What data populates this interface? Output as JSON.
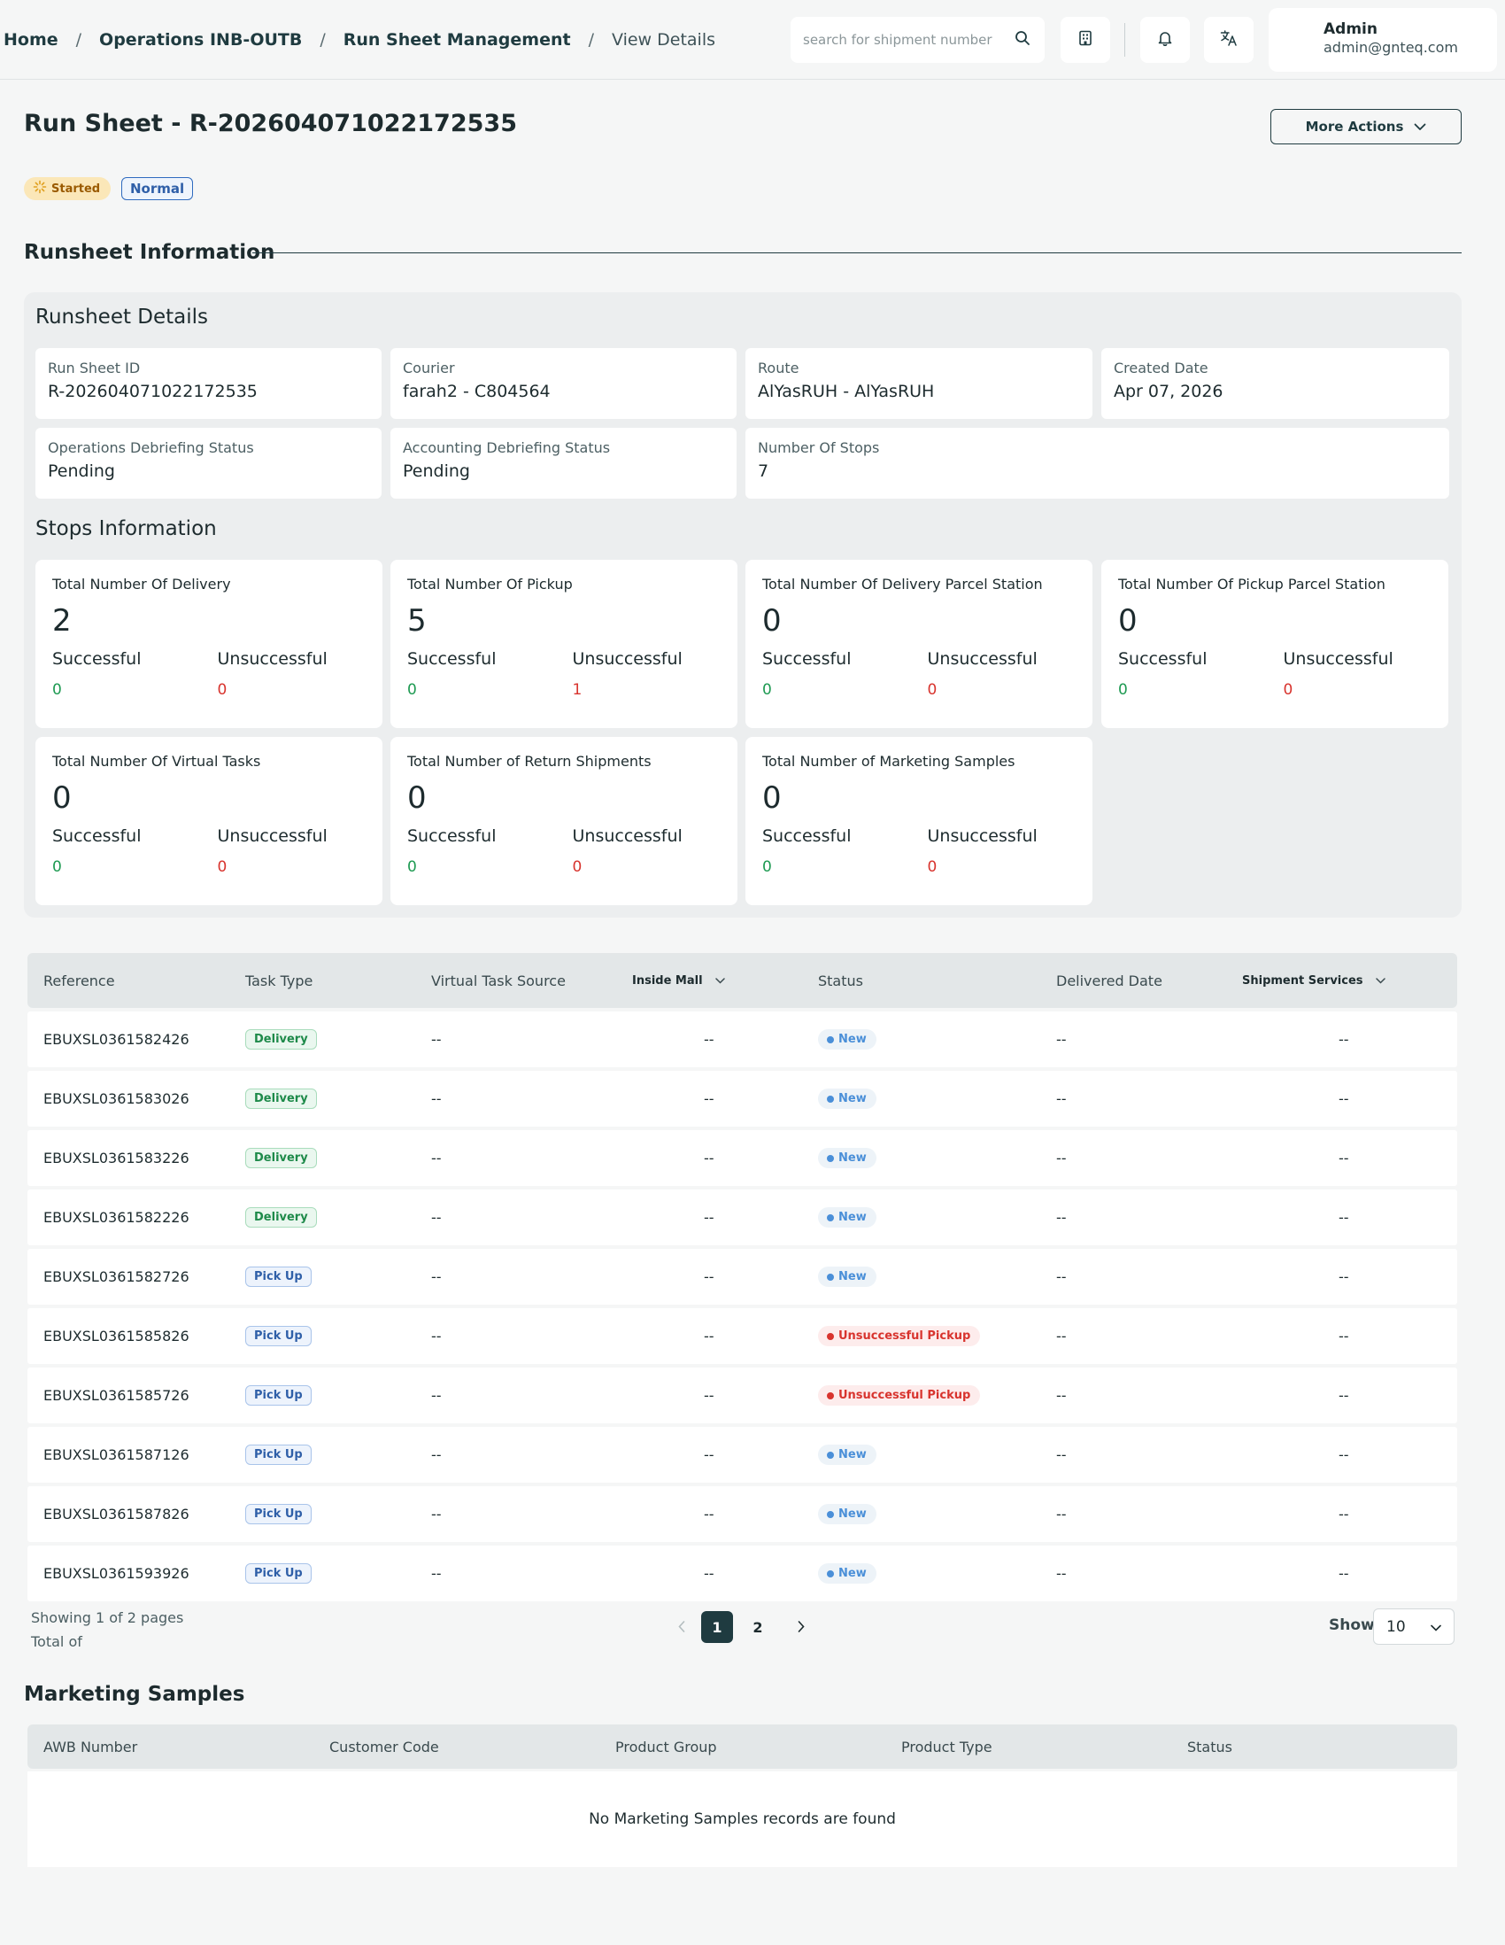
{
  "header": {
    "breadcrumbs": [
      "Home",
      "Operations INB-OUTB",
      "Run Sheet Management",
      "View Details"
    ],
    "separator": "/",
    "search_placeholder": "search for shipment number",
    "user": {
      "name": "Admin",
      "email": "admin@gnteq.com"
    },
    "icons": {
      "search": "search-icon",
      "building": "building-icon",
      "bell": "bell-icon",
      "translate": "translate-icon"
    }
  },
  "page": {
    "title": "Run Sheet - R-202604071022172535",
    "more_actions": "More Actions",
    "status_badge": "Started",
    "priority_badge": "Normal",
    "section_title": "Runsheet Information"
  },
  "details": {
    "heading": "Runsheet Details",
    "fields": [
      {
        "label": "Run Sheet ID",
        "value": "R-202604071022172535"
      },
      {
        "label": "Courier",
        "value": "farah2 - C804564"
      },
      {
        "label": "Route",
        "value": "AlYasRUH - AlYasRUH"
      },
      {
        "label": "Created Date",
        "value": "Apr 07, 2026"
      },
      {
        "label": "Operations Debriefing Status",
        "value": "Pending"
      },
      {
        "label": "Accounting Debriefing Status",
        "value": "Pending"
      },
      {
        "label": "Number Of Stops",
        "value": "7"
      }
    ]
  },
  "stops": {
    "heading": "Stops Information",
    "successful_label": "Successful",
    "unsuccessful_label": "Unsuccessful",
    "cards": [
      {
        "title": "Total Number Of Delivery",
        "total": "2",
        "successful": "0",
        "unsuccessful": "0"
      },
      {
        "title": "Total Number Of Pickup",
        "total": "5",
        "successful": "0",
        "unsuccessful": "1"
      },
      {
        "title": "Total Number Of Delivery Parcel Station",
        "total": "0",
        "successful": "0",
        "unsuccessful": "0"
      },
      {
        "title": "Total Number Of Pickup Parcel Station",
        "total": "0",
        "successful": "0",
        "unsuccessful": "0"
      },
      {
        "title": "Total Number Of Virtual Tasks",
        "total": "0",
        "successful": "0",
        "unsuccessful": "0"
      },
      {
        "title": "Total Number of Return Shipments",
        "total": "0",
        "successful": "0",
        "unsuccessful": "0"
      },
      {
        "title": "Total Number of Marketing Samples",
        "total": "0",
        "successful": "0",
        "unsuccessful": "0"
      }
    ]
  },
  "table": {
    "columns": [
      "Reference",
      "Task Type",
      "Virtual Task Source",
      "Inside Mall",
      "Status",
      "Delivered Date",
      "Shipment Services"
    ],
    "rows": [
      {
        "reference": "EBUXSL0361582426",
        "task_type": "Delivery",
        "virtual_source": "--",
        "inside_mall": "--",
        "status": "New",
        "delivered_date": "--",
        "services": "--"
      },
      {
        "reference": "EBUXSL0361583026",
        "task_type": "Delivery",
        "virtual_source": "--",
        "inside_mall": "--",
        "status": "New",
        "delivered_date": "--",
        "services": "--"
      },
      {
        "reference": "EBUXSL0361583226",
        "task_type": "Delivery",
        "virtual_source": "--",
        "inside_mall": "--",
        "status": "New",
        "delivered_date": "--",
        "services": "--"
      },
      {
        "reference": "EBUXSL0361582226",
        "task_type": "Delivery",
        "virtual_source": "--",
        "inside_mall": "--",
        "status": "New",
        "delivered_date": "--",
        "services": "--"
      },
      {
        "reference": "EBUXSL0361582726",
        "task_type": "Pick Up",
        "virtual_source": "--",
        "inside_mall": "--",
        "status": "New",
        "delivered_date": "--",
        "services": "--"
      },
      {
        "reference": "EBUXSL0361585826",
        "task_type": "Pick Up",
        "virtual_source": "--",
        "inside_mall": "--",
        "status": "Unsuccessful Pickup",
        "delivered_date": "--",
        "services": "--"
      },
      {
        "reference": "EBUXSL0361585726",
        "task_type": "Pick Up",
        "virtual_source": "--",
        "inside_mall": "--",
        "status": "Unsuccessful Pickup",
        "delivered_date": "--",
        "services": "--"
      },
      {
        "reference": "EBUXSL0361587126",
        "task_type": "Pick Up",
        "virtual_source": "--",
        "inside_mall": "--",
        "status": "New",
        "delivered_date": "--",
        "services": "--"
      },
      {
        "reference": "EBUXSL0361587826",
        "task_type": "Pick Up",
        "virtual_source": "--",
        "inside_mall": "--",
        "status": "New",
        "delivered_date": "--",
        "services": "--"
      },
      {
        "reference": "EBUXSL0361593926",
        "task_type": "Pick Up",
        "virtual_source": "--",
        "inside_mall": "--",
        "status": "New",
        "delivered_date": "--",
        "services": "--"
      }
    ]
  },
  "pagination": {
    "showing": "Showing 1 of 2 pages",
    "total": "Total of",
    "pages": [
      "1",
      "2"
    ],
    "current_page": "1",
    "show_label": "Show",
    "page_size": "10"
  },
  "marketing_samples": {
    "title": "Marketing Samples",
    "columns": [
      "AWB Number",
      "Customer Code",
      "Product Group",
      "Product Type",
      "Status"
    ],
    "empty_text": "No Marketing Samples records are found"
  },
  "colors": {
    "primary": "#1f3b40",
    "success": "#1e9a52",
    "danger": "#d8342e",
    "info": "#4a8fd8",
    "started_bg": "#fbe7b8"
  }
}
